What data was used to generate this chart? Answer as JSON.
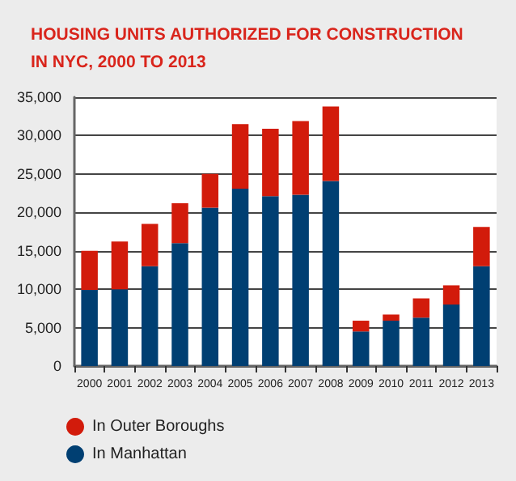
{
  "chart_data": {
    "type": "bar",
    "title": "HOUSING UNITS AUTHORIZED FOR CONSTRUCTION\nIN NYC, 2000 TO 2013",
    "categories": [
      "2000",
      "2001",
      "2002",
      "2003",
      "2004",
      "2005",
      "2006",
      "2007",
      "2008",
      "2009",
      "2010",
      "2011",
      "2012",
      "2013"
    ],
    "stacked": true,
    "series": [
      {
        "name": "In Manhattan",
        "color": "#003f72",
        "values": [
          9900,
          10000,
          13000,
          16000,
          20600,
          23100,
          22100,
          22300,
          24100,
          4500,
          5900,
          6300,
          8000,
          13000
        ]
      },
      {
        "name": "In Outer Boroughs",
        "color": "#d21b0b",
        "values": [
          5100,
          6200,
          5500,
          5200,
          4400,
          8400,
          8800,
          9600,
          9700,
          1400,
          800,
          2500,
          2500,
          5100
        ]
      }
    ],
    "ylim": [
      0,
      35000
    ],
    "yticks": [
      0,
      {
        "value": 5000,
        "label": "5,000"
      },
      {
        "value": 10000,
        "label": "10,000"
      },
      {
        "value": 15000,
        "label": "15,000"
      },
      {
        "value": 20000,
        "label": "20,000"
      },
      {
        "value": 25000,
        "label": "25,000"
      },
      {
        "value": 30000,
        "label": "30,000"
      },
      {
        "value": 35000,
        "label": "35,000"
      }
    ],
    "grid": "y",
    "legend": "bottom left"
  }
}
